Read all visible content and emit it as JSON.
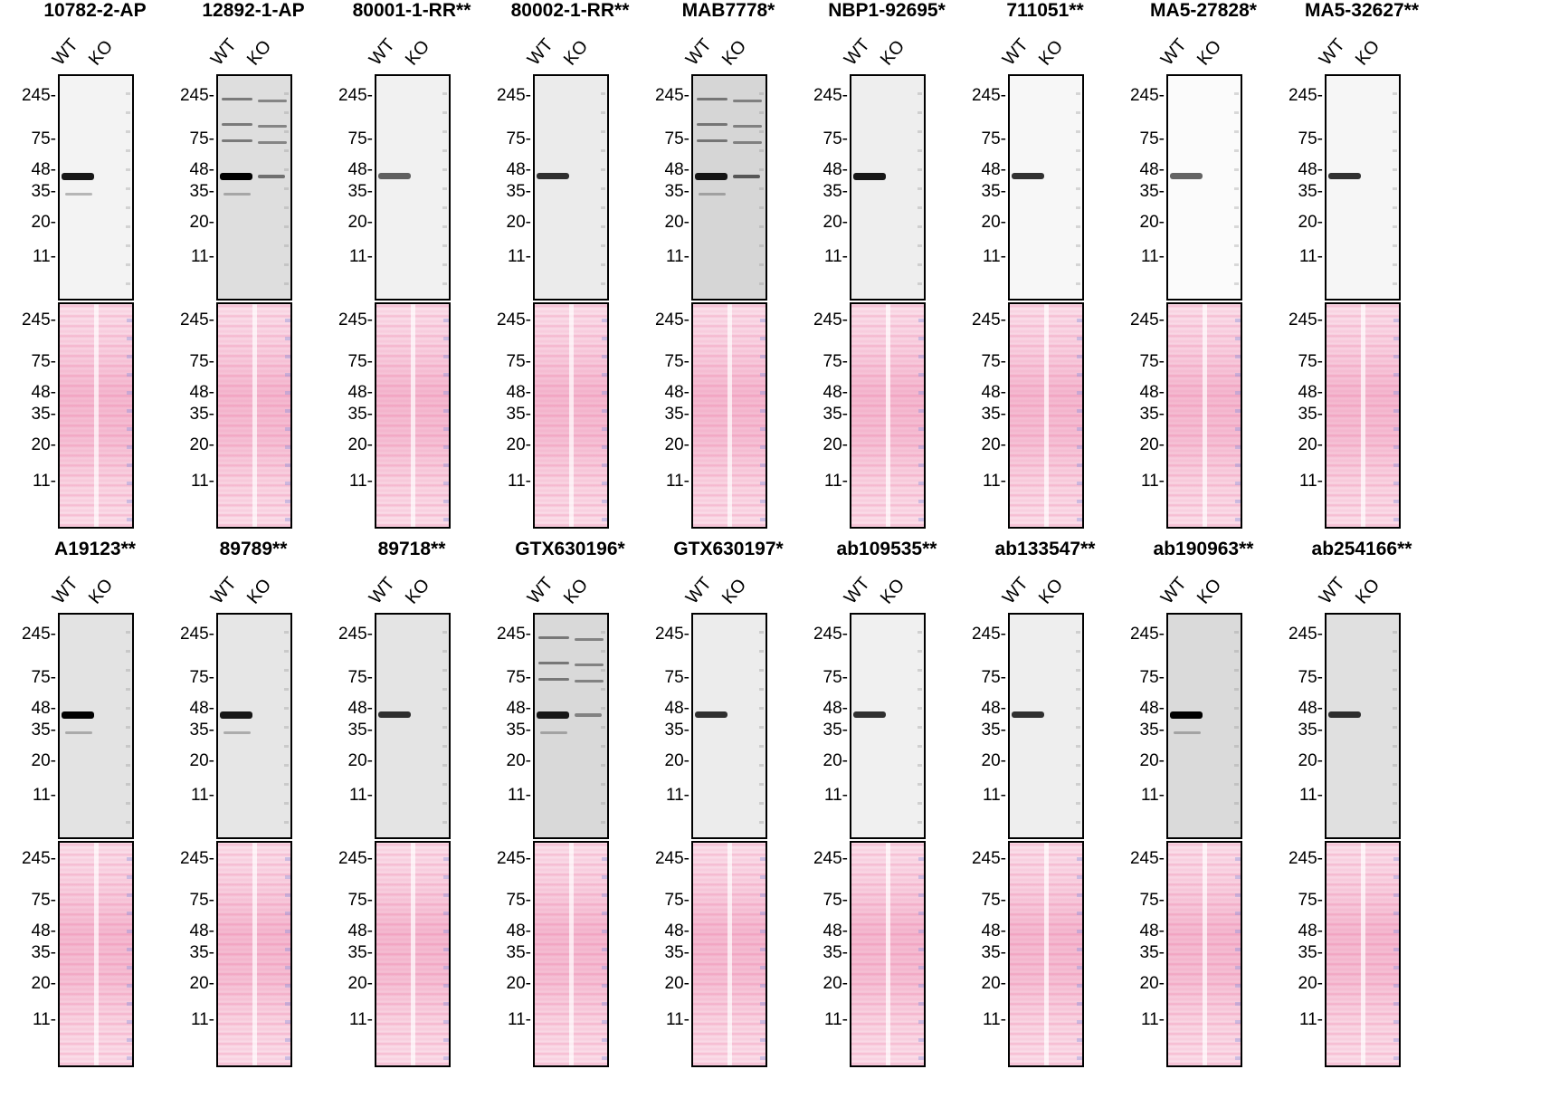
{
  "lane_labels": [
    "WT",
    "KO"
  ],
  "mw_markers": [
    "245",
    "75",
    "48",
    "35",
    "20",
    "11"
  ],
  "colors": {
    "stain": "#f4bcd2",
    "band": "#000000"
  },
  "blots": [
    {
      "title": "10782-2-AP",
      "bg": "#f3f3f3",
      "wt_band": 0.9,
      "ko_band": 0.0,
      "extra_bands": true
    },
    {
      "title": "12892-1-AP",
      "bg": "#dedede",
      "wt_band": 1.0,
      "ko_band": 0.5,
      "extra_bands": true
    },
    {
      "title": "80001-1-RR**",
      "bg": "#f1f1f1",
      "wt_band": 0.6,
      "ko_band": 0.0,
      "extra_bands": false
    },
    {
      "title": "80002-1-RR**",
      "bg": "#ebebeb",
      "wt_band": 0.8,
      "ko_band": 0.0,
      "extra_bands": false
    },
    {
      "title": "MAB7778*",
      "bg": "#d6d6d6",
      "wt_band": 0.9,
      "ko_band": 0.6,
      "extra_bands": true
    },
    {
      "title": "NBP1-92695*",
      "bg": "#eeeeee",
      "wt_band": 0.9,
      "ko_band": 0.0,
      "extra_bands": false
    },
    {
      "title": "711051**",
      "bg": "#f7f7f7",
      "wt_band": 0.8,
      "ko_band": 0.0,
      "extra_bands": false
    },
    {
      "title": "MA5-27828*",
      "bg": "#fbfbfb",
      "wt_band": 0.6,
      "ko_band": 0.0,
      "extra_bands": false
    },
    {
      "title": "MA5-32627**",
      "bg": "#f6f6f6",
      "wt_band": 0.8,
      "ko_band": 0.0,
      "extra_bands": false
    },
    {
      "title": "A19123**",
      "bg": "#e3e3e3",
      "wt_band": 1.0,
      "ko_band": 0.0,
      "extra_bands": true
    },
    {
      "title": "89789**",
      "bg": "#e6e6e6",
      "wt_band": 0.9,
      "ko_band": 0.0,
      "extra_bands": true
    },
    {
      "title": "89718**",
      "bg": "#e4e4e4",
      "wt_band": 0.8,
      "ko_band": 0.0,
      "extra_bands": false
    },
    {
      "title": "GTX630196*",
      "bg": "#d9d9d9",
      "wt_band": 0.9,
      "ko_band": 0.4,
      "extra_bands": true
    },
    {
      "title": "GTX630197*",
      "bg": "#ececec",
      "wt_band": 0.8,
      "ko_band": 0.0,
      "extra_bands": false
    },
    {
      "title": "ab109535**",
      "bg": "#f0f0f0",
      "wt_band": 0.8,
      "ko_band": 0.0,
      "extra_bands": false
    },
    {
      "title": "ab133547**",
      "bg": "#eeeeee",
      "wt_band": 0.8,
      "ko_band": 0.0,
      "extra_bands": false
    },
    {
      "title": "ab190963**",
      "bg": "#dadada",
      "wt_band": 1.0,
      "ko_band": 0.0,
      "extra_bands": true
    },
    {
      "title": "ab254166**",
      "bg": "#e0e0e0",
      "wt_band": 0.8,
      "ko_band": 0.0,
      "extra_bands": false
    }
  ]
}
